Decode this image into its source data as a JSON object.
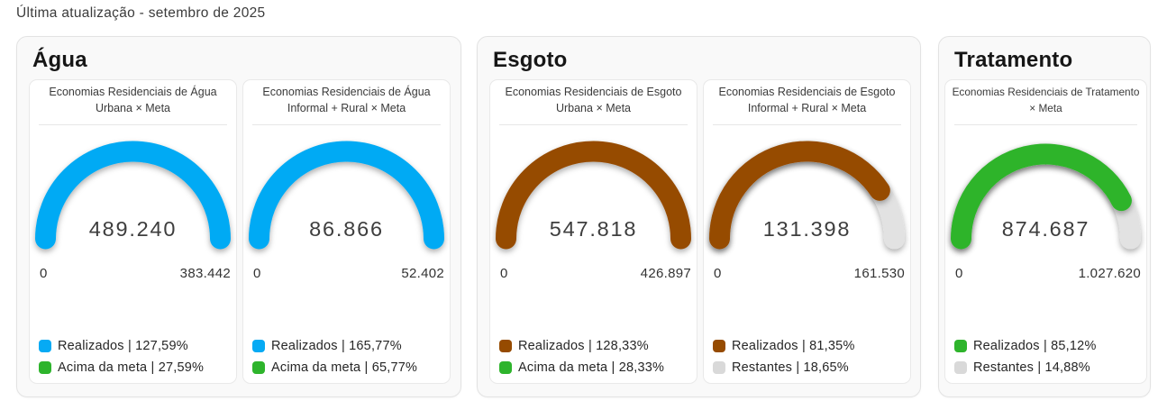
{
  "page": {
    "last_update": "Última atualização - setembro de 2025"
  },
  "colors": {
    "blue": "#06aaf4",
    "green": "#2eb42c",
    "brown": "#964b00",
    "track_gray": "#e2e2e2",
    "value_text": "#404040",
    "panel_bg": "#f9f9f9",
    "card_bg": "#ffffff"
  },
  "panels": [
    {
      "title": "Água",
      "cards": [
        {
          "title_line1": "Economias Residenciais de Água",
          "title_line2": "Urbana × Meta",
          "value": "489.240",
          "min": "0",
          "max": "383.442",
          "gauge": {
            "fill_percent": 100,
            "color": "#06aaf4",
            "show_track": false
          },
          "legend": [
            {
              "color": "#06aaf4",
              "text": "Realizados | 127,59%"
            },
            {
              "color": "#2eb42c",
              "text": "Acima da meta | 27,59%"
            }
          ]
        },
        {
          "title_line1": "Economias Residenciais de Água",
          "title_line2": "Informal + Rural × Meta",
          "value": "86.866",
          "min": "0",
          "max": "52.402",
          "gauge": {
            "fill_percent": 100,
            "color": "#06aaf4",
            "show_track": false
          },
          "legend": [
            {
              "color": "#06aaf4",
              "text": "Realizados | 165,77%"
            },
            {
              "color": "#2eb42c",
              "text": "Acima da meta | 65,77%"
            }
          ]
        }
      ]
    },
    {
      "title": "Esgoto",
      "cards": [
        {
          "title_line1": "Economias Residenciais de Esgoto",
          "title_line2": "Urbana × Meta",
          "value": "547.818",
          "min": "0",
          "max": "426.897",
          "gauge": {
            "fill_percent": 100,
            "color": "#964b00",
            "show_track": false
          },
          "legend": [
            {
              "color": "#964b00",
              "text": "Realizados | 128,33%"
            },
            {
              "color": "#2eb42c",
              "text": "Acima da meta | 28,33%"
            }
          ]
        },
        {
          "title_line1": "Economias Residenciais de Esgoto",
          "title_line2": "Informal + Rural × Meta",
          "value": "131.398",
          "min": "0",
          "max": "161.530",
          "gauge": {
            "fill_percent": 81.35,
            "color": "#964b00",
            "show_track": true
          },
          "legend": [
            {
              "color": "#964b00",
              "text": "Realizados | 81,35%"
            },
            {
              "color": "#d9d9d9",
              "text": "Restantes | 18,65%"
            }
          ]
        }
      ]
    },
    {
      "title": "Tratamento",
      "cards": [
        {
          "title_line1": "Economias Residenciais de Tratamento",
          "title_line2": "× Meta",
          "value": "874.687",
          "min": "0",
          "max": "1.027.620",
          "gauge": {
            "fill_percent": 85.12,
            "color": "#2eb42c",
            "show_track": true
          },
          "legend": [
            {
              "color": "#2eb42c",
              "text": "Realizados | 85,12%"
            },
            {
              "color": "#d9d9d9",
              "text": "Restantes | 14,88%"
            }
          ]
        }
      ]
    }
  ],
  "chart_data": [
    {
      "type": "gauge",
      "title": "Economias Residenciais de Água Urbana × Meta",
      "value": 489240,
      "min": 0,
      "max": 383442,
      "realized_percent": 127.59,
      "above_target_percent": 27.59,
      "arc_fill_percent": 100,
      "arc_color": "#06aaf4",
      "legend": [
        "Realizados | 127,59%",
        "Acima da meta | 27,59%"
      ]
    },
    {
      "type": "gauge",
      "title": "Economias Residenciais de Água Informal + Rural × Meta",
      "value": 86866,
      "min": 0,
      "max": 52402,
      "realized_percent": 165.77,
      "above_target_percent": 65.77,
      "arc_fill_percent": 100,
      "arc_color": "#06aaf4",
      "legend": [
        "Realizados | 165,77%",
        "Acima da meta | 65,77%"
      ]
    },
    {
      "type": "gauge",
      "title": "Economias Residenciais de Esgoto Urbana × Meta",
      "value": 547818,
      "min": 0,
      "max": 426897,
      "realized_percent": 128.33,
      "above_target_percent": 28.33,
      "arc_fill_percent": 100,
      "arc_color": "#964b00",
      "legend": [
        "Realizados | 128,33%",
        "Acima da meta | 28,33%"
      ]
    },
    {
      "type": "gauge",
      "title": "Economias Residenciais de Esgoto Informal + Rural × Meta",
      "value": 131398,
      "min": 0,
      "max": 161530,
      "realized_percent": 81.35,
      "remaining_percent": 18.65,
      "arc_fill_percent": 81.35,
      "arc_color": "#964b00",
      "legend": [
        "Realizados | 81,35%",
        "Restantes | 18,65%"
      ]
    },
    {
      "type": "gauge",
      "title": "Economias Residenciais de Tratamento × Meta",
      "value": 874687,
      "min": 0,
      "max": 1027620,
      "realized_percent": 85.12,
      "remaining_percent": 14.88,
      "arc_fill_percent": 85.12,
      "arc_color": "#2eb42c",
      "legend": [
        "Realizados | 85,12%",
        "Restantes | 14,88%"
      ]
    }
  ]
}
